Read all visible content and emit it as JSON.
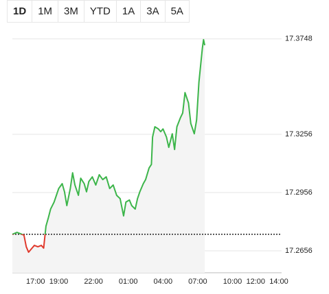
{
  "tabs": [
    "1D",
    "1M",
    "3M",
    "YTD",
    "1A",
    "3A",
    "5A"
  ],
  "chart_data": {
    "type": "line",
    "x": [
      15.0,
      15.4,
      15.7,
      16.0,
      16.2,
      16.4,
      16.7,
      16.9,
      17.2,
      17.5,
      17.7,
      17.9,
      18.1,
      18.3,
      18.6,
      18.8,
      19.0,
      19.3,
      19.5,
      19.7,
      20.0,
      20.2,
      20.4,
      20.7,
      20.9,
      21.2,
      21.4,
      21.6,
      21.9,
      22.2,
      22.5,
      22.8,
      23.1,
      23.4,
      23.7,
      24.0,
      24.3,
      24.6,
      24.8,
      25.1,
      25.3,
      25.6,
      25.8,
      26.0,
      26.3,
      26.5,
      26.8,
      27.0,
      27.1,
      27.3,
      27.6,
      27.8,
      28.0,
      28.3,
      28.5,
      28.8,
      29.0,
      29.2,
      29.5,
      29.7,
      29.9,
      30.2,
      30.4,
      30.7,
      30.9,
      31.1,
      31.4,
      31.5,
      31.6
    ],
    "values": [
      17.2741,
      17.2751,
      17.2744,
      17.2737,
      17.2677,
      17.2649,
      17.267,
      17.2684,
      17.2677,
      17.2684,
      17.267,
      17.2783,
      17.2825,
      17.2871,
      17.2907,
      17.2942,
      17.2977,
      17.3002,
      17.296,
      17.2889,
      17.2977,
      17.3058,
      17.2995,
      17.2942,
      17.303,
      17.3002,
      17.296,
      17.3013,
      17.3037,
      17.2995,
      17.3048,
      17.3023,
      17.3037,
      17.2977,
      17.2995,
      17.2942,
      17.2925,
      17.2836,
      17.2907,
      17.2918,
      17.2889,
      17.2871,
      17.2925,
      17.296,
      17.3002,
      17.3023,
      17.3083,
      17.3101,
      17.3242,
      17.3295,
      17.3284,
      17.327,
      17.3284,
      17.3242,
      17.3189,
      17.3259,
      17.3178,
      17.3295,
      17.3341,
      17.3366,
      17.3471,
      17.3418,
      17.3312,
      17.3259,
      17.333,
      17.3524,
      17.3701,
      17.3744,
      17.3715
    ],
    "color": "#3cb54a",
    "negative_color": "#e0392c",
    "area_color": "#f4f4f4",
    "reference_value": 17.2741,
    "xlim": [
      15,
      38
    ],
    "xticks": [
      {
        "value": 17,
        "label": "17:00"
      },
      {
        "value": 19,
        "label": "19:00"
      },
      {
        "value": 22,
        "label": "22:00"
      },
      {
        "value": 25,
        "label": "01:00"
      },
      {
        "value": 28,
        "label": "04:00"
      },
      {
        "value": 31,
        "label": "07:00"
      },
      {
        "value": 34,
        "label": "10:00"
      },
      {
        "value": 36,
        "label": "12:00"
      },
      {
        "value": 38,
        "label": "14:00"
      }
    ],
    "ylim": [
      17.2543,
      17.3807
    ],
    "yticks": [
      17.3748,
      17.3256,
      17.2956,
      17.2656
    ],
    "grid": true
  }
}
